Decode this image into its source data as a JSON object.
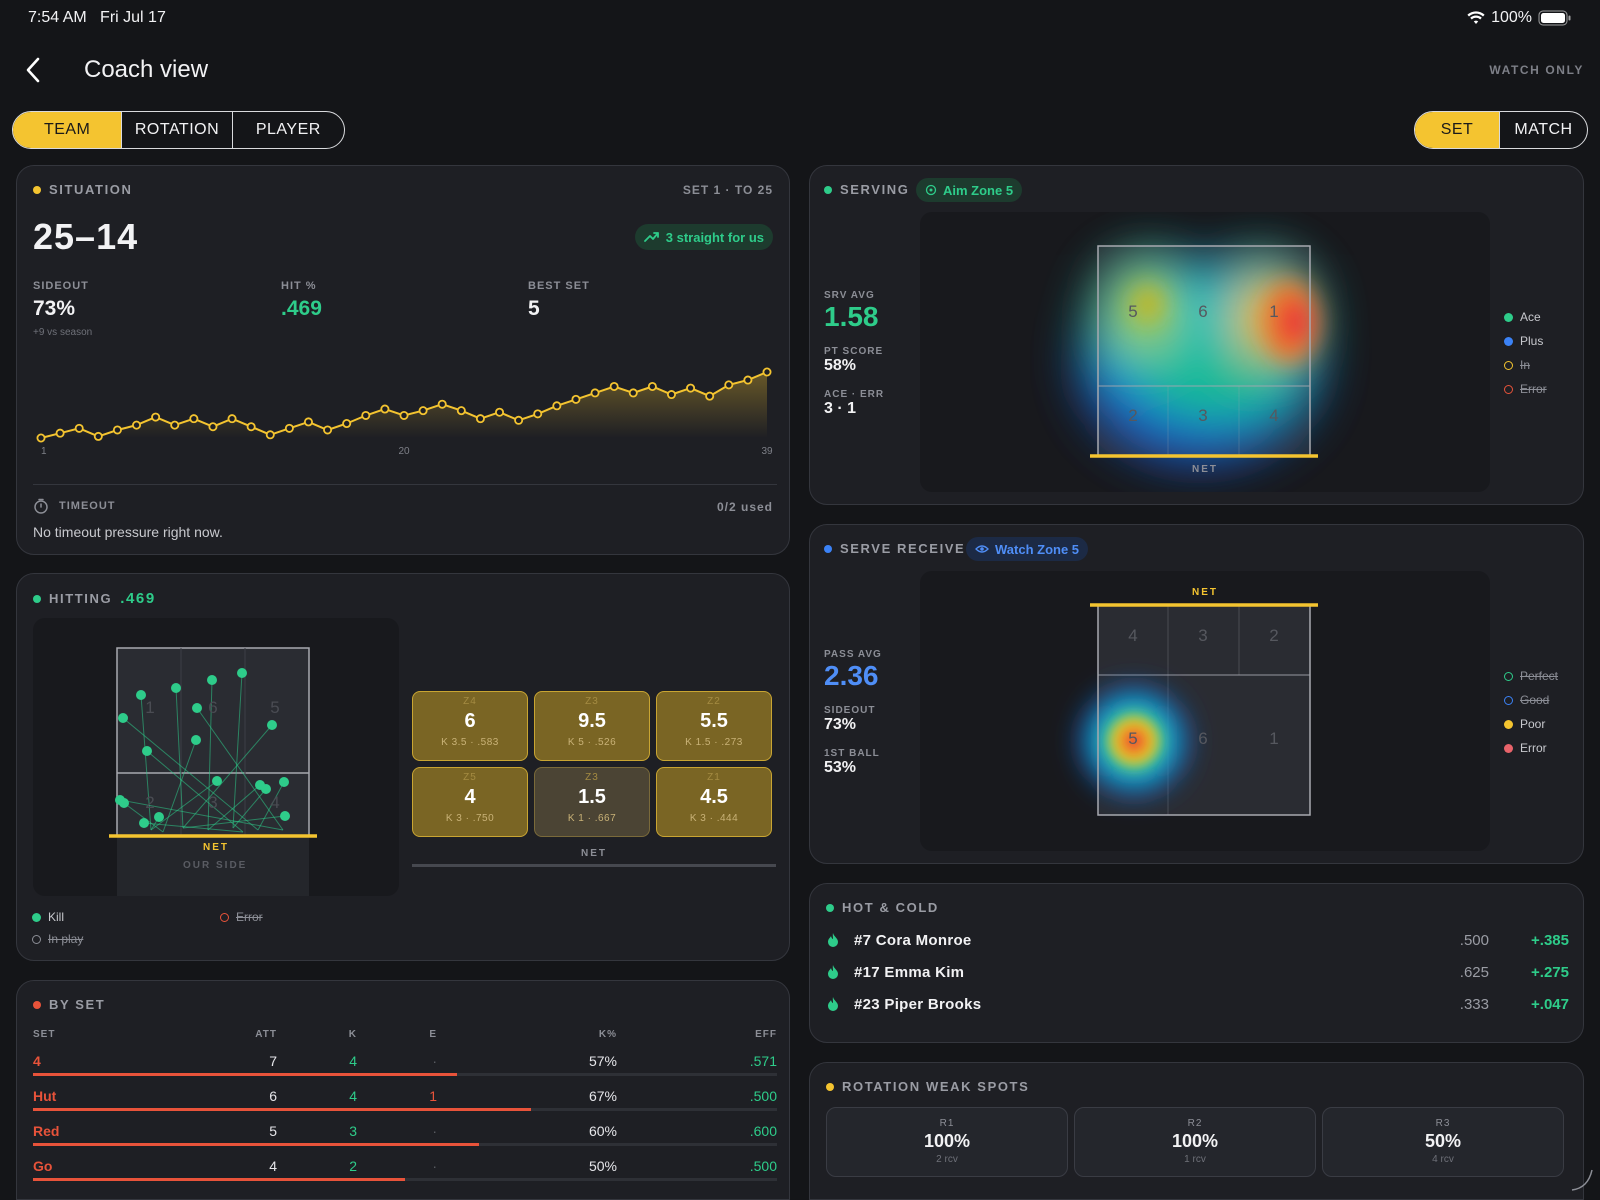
{
  "status": {
    "time": "7:54 AM",
    "date": "Fri Jul 17",
    "battery": "100%"
  },
  "header": {
    "title": "Coach view",
    "watch": "WATCH ONLY"
  },
  "tabs": [
    "TEAM",
    "ROTATION",
    "PLAYER"
  ],
  "scope": [
    "SET",
    "MATCH"
  ],
  "situation": {
    "label": "SITUATION",
    "set_info": "SET 1 · TO 25",
    "score": "25–14",
    "streak": "3 straight for us",
    "stats": [
      {
        "label": "SIDEOUT",
        "value": "73%",
        "sub": "+9 vs season"
      },
      {
        "label": "HIT %",
        "value": ".469",
        "sub": ""
      },
      {
        "label": "BEST SET",
        "value": "5",
        "sub": ""
      }
    ],
    "timeout_label": "TIMEOUT",
    "timeout_used": "0/2 used",
    "timeout_text": "No timeout pressure right now."
  },
  "chart_data": {
    "type": "area",
    "x": [
      1,
      2,
      3,
      4,
      5,
      6,
      7,
      8,
      9,
      10,
      11,
      12,
      13,
      14,
      15,
      16,
      17,
      18,
      19,
      20,
      21,
      22,
      23,
      24,
      25,
      26,
      27,
      28,
      29,
      30,
      31,
      32,
      33,
      34,
      35,
      36,
      37,
      38,
      39
    ],
    "y": [
      0,
      3,
      6,
      1,
      5,
      8,
      13,
      8,
      12,
      7,
      12,
      7,
      2,
      6,
      10,
      5,
      9,
      14,
      18,
      14,
      17,
      21,
      17,
      12,
      16,
      11,
      15,
      20,
      24,
      28,
      32,
      28,
      32,
      27,
      31,
      26,
      33,
      36,
      41
    ],
    "tick_labels": [
      "1",
      "20",
      "39"
    ]
  },
  "serving": {
    "label": "SERVING",
    "aim": "Aim Zone 5",
    "stats": [
      {
        "label": "SRV AVG",
        "value": "1.58"
      },
      {
        "label": "PT SCORE",
        "value": "58%"
      },
      {
        "label": "ACE · ERR",
        "value": "3 · 1"
      }
    ],
    "zones": [
      "5",
      "6",
      "1",
      "2",
      "3",
      "4"
    ],
    "net": "NET",
    "legend": [
      "Ace",
      "Plus",
      "In",
      "Error"
    ]
  },
  "receive": {
    "label": "SERVE RECEIVE",
    "watch": "Watch Zone 5",
    "stats": [
      {
        "label": "PASS AVG",
        "value": "2.36"
      },
      {
        "label": "SIDEOUT",
        "value": "73%"
      },
      {
        "label": "1ST BALL",
        "value": "53%"
      }
    ],
    "zones": [
      "4",
      "3",
      "2",
      "5",
      "6",
      "1"
    ],
    "net": "NET",
    "legend": [
      "Perfect",
      "Good",
      "Poor",
      "Error"
    ]
  },
  "hitting": {
    "label": "HITTING",
    "value": ".469",
    "zones_court": [
      "1",
      "6",
      "5",
      "2",
      "3",
      "4"
    ],
    "net": "NET",
    "our_side": "OUR SIDE",
    "zones": [
      {
        "label": "Z4",
        "value": "6",
        "sub": "K 3.5 · .583"
      },
      {
        "label": "Z3",
        "value": "9.5",
        "sub": "K 5 · .526"
      },
      {
        "label": "Z2",
        "value": "5.5",
        "sub": "K 1.5 · .273"
      },
      {
        "label": "Z5",
        "value": "4",
        "sub": "K 3 · .750"
      },
      {
        "label": "Z3",
        "value": "1.5",
        "sub": "K 1 · .667"
      },
      {
        "label": "Z1",
        "value": "4.5",
        "sub": "K 3 · .444"
      }
    ],
    "zones_net": "NET",
    "legend": [
      "Kill",
      "Error",
      "In play"
    ]
  },
  "byset": {
    "label": "BY SET",
    "headers": [
      "SET",
      "ATT",
      "K",
      "E",
      "K%",
      "EFF"
    ],
    "rows": [
      {
        "set": "4",
        "att": "7",
        "k": "4",
        "e": "·",
        "kp": "57%",
        "eff": ".571",
        "bar": 0.57
      },
      {
        "set": "Hut",
        "att": "6",
        "k": "4",
        "e": "1",
        "kp": "67%",
        "eff": ".500",
        "bar": 0.67
      },
      {
        "set": "Red",
        "att": "5",
        "k": "3",
        "e": "·",
        "kp": "60%",
        "eff": ".600",
        "bar": 0.6
      },
      {
        "set": "Go",
        "att": "4",
        "k": "2",
        "e": "·",
        "kp": "50%",
        "eff": ".500",
        "bar": 0.5
      }
    ]
  },
  "hotcold": {
    "label": "HOT & COLD",
    "rows": [
      {
        "name": "#7 Cora Monroe",
        "avg": ".500",
        "delta": "+.385"
      },
      {
        "name": "#17 Emma Kim",
        "avg": ".625",
        "delta": "+.275"
      },
      {
        "name": "#23 Piper Brooks",
        "avg": ".333",
        "delta": "+.047"
      }
    ]
  },
  "rotation": {
    "label": "ROTATION WEAK SPOTS",
    "cells": [
      {
        "r": "R1",
        "v": "100%",
        "s": "2 rcv"
      },
      {
        "r": "R2",
        "v": "100%",
        "s": "1 rcv"
      },
      {
        "r": "R3",
        "v": "50%",
        "s": "4 rcv"
      }
    ]
  },
  "colors": {
    "accent": "#f4c430",
    "green": "#2ecc8a",
    "blue": "#3b82f6",
    "red": "#e8533a"
  }
}
